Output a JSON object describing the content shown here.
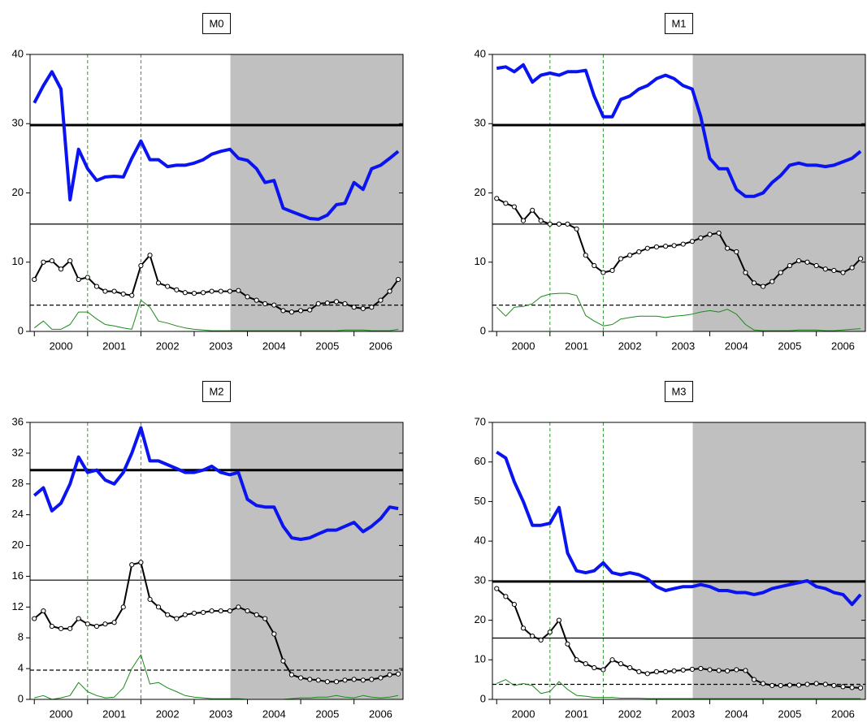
{
  "chart_data": [
    {
      "type": "line",
      "title": "M0",
      "x": [
        2000,
        2000.17,
        2000.33,
        2000.5,
        2000.67,
        2000.83,
        2001,
        2001.17,
        2001.33,
        2001.5,
        2001.67,
        2001.83,
        2002,
        2002.17,
        2002.33,
        2002.5,
        2002.67,
        2002.83,
        2003,
        2003.17,
        2003.33,
        2003.5,
        2003.67,
        2003.83,
        2004,
        2004.17,
        2004.33,
        2004.5,
        2004.67,
        2004.83,
        2005,
        2005.17,
        2005.33,
        2005.5,
        2005.67,
        2005.83,
        2006,
        2006.17,
        2006.33,
        2006.5,
        2006.67,
        2006.83
      ],
      "xlim": [
        1999.92,
        2006.92
      ],
      "ylim": [
        0,
        40
      ],
      "yticks": [
        0,
        10,
        20,
        30,
        40
      ],
      "xticks": [
        {
          "value": 2000,
          "label": "2000"
        },
        {
          "value": 2001,
          "label": "2001"
        },
        {
          "value": 2002,
          "label": "2002"
        },
        {
          "value": 2003,
          "label": "2003"
        },
        {
          "value": 2004,
          "label": "2004"
        },
        {
          "value": 2005,
          "label": "2005"
        },
        {
          "value": 2006,
          "label": "2006"
        }
      ],
      "shaded": [
        2003.68,
        2006.92
      ],
      "vlines": [
        2001.0,
        2002.0
      ],
      "reference_lines": [
        {
          "value": 29.8,
          "style": "thick"
        },
        {
          "value": 15.5,
          "style": "thin"
        },
        {
          "value": 3.8,
          "style": "dashed"
        }
      ],
      "series": [
        {
          "color": "#0a14f0",
          "width": 4,
          "markers": false,
          "values": [
            33,
            35.5,
            37.5,
            35,
            19,
            26.3,
            23.5,
            21.8,
            22.3,
            22.4,
            22.3,
            25,
            27.5,
            24.8,
            24.8,
            23.8,
            24,
            24,
            24.3,
            24.8,
            25.6,
            26,
            26.3,
            25,
            24.7,
            23.5,
            21.5,
            21.8,
            17.8,
            17.3,
            16.8,
            16.3,
            16.2,
            16.8,
            18.3,
            18.5,
            21.5,
            20.5,
            23.5,
            24,
            25,
            26
          ]
        },
        {
          "color": "#000000",
          "width": 2,
          "markers": true,
          "values": [
            7.5,
            10,
            10.2,
            9,
            10.2,
            7.5,
            7.8,
            6.5,
            5.8,
            5.8,
            5.4,
            5.2,
            9.5,
            11,
            7,
            6.5,
            6,
            5.6,
            5.5,
            5.6,
            5.8,
            5.8,
            5.8,
            5.9,
            5,
            4.5,
            4,
            3.8,
            3,
            2.8,
            3,
            3.1,
            4,
            4.1,
            4.3,
            4,
            3.5,
            3.3,
            3.5,
            4.5,
            5.8,
            7.5
          ]
        },
        {
          "color": "#1a8a1a",
          "width": 1,
          "markers": false,
          "values": [
            0.5,
            1.5,
            0.3,
            0.3,
            1,
            2.8,
            2.8,
            1.8,
            1,
            0.8,
            0.5,
            0.3,
            4.5,
            3.5,
            1.5,
            1.2,
            0.8,
            0.5,
            0.3,
            0.2,
            0.1,
            0.1,
            0.1,
            0.1,
            0.1,
            0.1,
            0.1,
            0.1,
            0.1,
            0.1,
            0.1,
            0.1,
            0.1,
            0.1,
            0.1,
            0.2,
            0.2,
            0.2,
            0.1,
            0.1,
            0.1,
            0.3
          ]
        }
      ]
    },
    {
      "type": "line",
      "title": "M1",
      "x": [
        2000,
        2000.17,
        2000.33,
        2000.5,
        2000.67,
        2000.83,
        2001,
        2001.17,
        2001.33,
        2001.5,
        2001.67,
        2001.83,
        2002,
        2002.17,
        2002.33,
        2002.5,
        2002.67,
        2002.83,
        2003,
        2003.17,
        2003.33,
        2003.5,
        2003.67,
        2003.83,
        2004,
        2004.17,
        2004.33,
        2004.5,
        2004.67,
        2004.83,
        2005,
        2005.17,
        2005.33,
        2005.5,
        2005.67,
        2005.83,
        2006,
        2006.17,
        2006.33,
        2006.5,
        2006.67,
        2006.83
      ],
      "xlim": [
        1999.92,
        2006.92
      ],
      "ylim": [
        0,
        40
      ],
      "yticks": [
        0,
        10,
        20,
        30,
        40
      ],
      "xticks": [
        {
          "value": 2000,
          "label": "2000"
        },
        {
          "value": 2001,
          "label": "2001"
        },
        {
          "value": 2002,
          "label": "2002"
        },
        {
          "value": 2003,
          "label": "2003"
        },
        {
          "value": 2004,
          "label": "2004"
        },
        {
          "value": 2005,
          "label": "2005"
        },
        {
          "value": 2006,
          "label": "2006"
        }
      ],
      "shaded": [
        2003.68,
        2006.92
      ],
      "vlines": [
        2001.0,
        2002.0
      ],
      "reference_lines": [
        {
          "value": 29.8,
          "style": "thick"
        },
        {
          "value": 15.5,
          "style": "thin"
        },
        {
          "value": 3.8,
          "style": "dashed"
        }
      ],
      "series": [
        {
          "color": "#0a14f0",
          "width": 4,
          "markers": false,
          "values": [
            38,
            38.2,
            37.5,
            38.5,
            36,
            37,
            37.3,
            37,
            37.5,
            37.5,
            37.7,
            34,
            31,
            31,
            33.5,
            34,
            35,
            35.5,
            36.5,
            37,
            36.5,
            35.5,
            35,
            31,
            25,
            23.5,
            23.5,
            20.5,
            19.5,
            19.5,
            20,
            21.5,
            22.5,
            24,
            24.3,
            24,
            24,
            23.8,
            24,
            24.5,
            25,
            26
          ]
        },
        {
          "color": "#000000",
          "width": 2,
          "markers": true,
          "values": [
            19.2,
            18.5,
            18,
            16,
            17.5,
            16,
            15.5,
            15.5,
            15.5,
            14.8,
            11,
            9.5,
            8.5,
            8.8,
            10.5,
            11,
            11.5,
            12,
            12.2,
            12.3,
            12.4,
            12.6,
            13,
            13.5,
            14,
            14.2,
            12,
            11.5,
            8.5,
            7,
            6.5,
            7.2,
            8.5,
            9.5,
            10.2,
            10,
            9.5,
            9,
            8.8,
            8.5,
            9.2,
            10.5
          ]
        },
        {
          "color": "#1a8a1a",
          "width": 1,
          "markers": false,
          "values": [
            3.5,
            2.2,
            3.5,
            3.6,
            4,
            5,
            5.4,
            5.5,
            5.5,
            5.2,
            2.3,
            1.5,
            0.8,
            1,
            1.8,
            2,
            2.2,
            2.2,
            2.2,
            2,
            2.2,
            2.3,
            2.5,
            2.8,
            3,
            2.8,
            3.2,
            2.5,
            1,
            0.2,
            0.1,
            0.1,
            0.1,
            0.1,
            0.2,
            0.2,
            0.2,
            0.1,
            0.1,
            0.2,
            0.3,
            0.4
          ]
        }
      ]
    },
    {
      "type": "line",
      "title": "M2",
      "x": [
        2000,
        2000.17,
        2000.33,
        2000.5,
        2000.67,
        2000.83,
        2001,
        2001.17,
        2001.33,
        2001.5,
        2001.67,
        2001.83,
        2002,
        2002.17,
        2002.33,
        2002.5,
        2002.67,
        2002.83,
        2003,
        2003.17,
        2003.33,
        2003.5,
        2003.67,
        2003.83,
        2004,
        2004.17,
        2004.33,
        2004.5,
        2004.67,
        2004.83,
        2005,
        2005.17,
        2005.33,
        2005.5,
        2005.67,
        2005.83,
        2006,
        2006.17,
        2006.33,
        2006.5,
        2006.67,
        2006.83
      ],
      "xlim": [
        1999.92,
        2006.92
      ],
      "ylim": [
        0,
        36
      ],
      "yticks": [
        0,
        4,
        8,
        12,
        16,
        20,
        24,
        28,
        32,
        36
      ],
      "xticks": [
        {
          "value": 2000,
          "label": "2000"
        },
        {
          "value": 2001,
          "label": "2001"
        },
        {
          "value": 2002,
          "label": "2002"
        },
        {
          "value": 2003,
          "label": "2003"
        },
        {
          "value": 2004,
          "label": "2004"
        },
        {
          "value": 2005,
          "label": "2005"
        },
        {
          "value": 2006,
          "label": "2006"
        }
      ],
      "shaded": [
        2003.68,
        2006.92
      ],
      "vlines": [
        2001.0,
        2002.0
      ],
      "reference_lines": [
        {
          "value": 29.8,
          "style": "thick"
        },
        {
          "value": 15.5,
          "style": "thin"
        },
        {
          "value": 3.8,
          "style": "dashed"
        }
      ],
      "series": [
        {
          "color": "#0a14f0",
          "width": 4,
          "markers": false,
          "values": [
            26.5,
            27.5,
            24.5,
            25.5,
            28,
            31.5,
            29.5,
            29.8,
            28.5,
            28,
            29.5,
            32,
            35.3,
            31,
            31,
            30.5,
            30,
            29.5,
            29.5,
            29.8,
            30.3,
            29.5,
            29.2,
            29.5,
            26,
            25.2,
            25,
            25,
            22.5,
            21,
            20.8,
            21,
            21.5,
            22,
            22,
            22.5,
            23,
            21.8,
            22.5,
            23.5,
            25,
            24.8
          ]
        },
        {
          "color": "#000000",
          "width": 2,
          "markers": true,
          "values": [
            10.5,
            11.5,
            9.5,
            9.2,
            9.2,
            10.5,
            9.8,
            9.5,
            9.8,
            10,
            12,
            17.5,
            17.8,
            13,
            12,
            11,
            10.5,
            11,
            11.2,
            11.3,
            11.5,
            11.5,
            11.5,
            12,
            11.5,
            11,
            10.5,
            8.5,
            5,
            3.2,
            2.8,
            2.6,
            2.5,
            2.3,
            2.3,
            2.5,
            2.6,
            2.5,
            2.6,
            2.8,
            3.2,
            3.3
          ]
        },
        {
          "color": "#1a8a1a",
          "width": 1,
          "markers": false,
          "values": [
            0.2,
            0.5,
            0,
            0.2,
            0.5,
            2.2,
            1,
            0.5,
            0.2,
            0.3,
            1.5,
            4,
            5.8,
            2,
            2.2,
            1.5,
            1,
            0.5,
            0.3,
            0.2,
            0.1,
            0.1,
            0.1,
            0.1,
            0,
            0,
            0,
            0,
            0,
            0.1,
            0.2,
            0.2,
            0.3,
            0.3,
            0.5,
            0.3,
            0.2,
            0.5,
            0.3,
            0.2,
            0.3,
            0.5
          ]
        }
      ]
    },
    {
      "type": "line",
      "title": "M3",
      "x": [
        2000,
        2000.17,
        2000.33,
        2000.5,
        2000.67,
        2000.83,
        2001,
        2001.17,
        2001.33,
        2001.5,
        2001.67,
        2001.83,
        2002,
        2002.17,
        2002.33,
        2002.5,
        2002.67,
        2002.83,
        2003,
        2003.17,
        2003.33,
        2003.5,
        2003.67,
        2003.83,
        2004,
        2004.17,
        2004.33,
        2004.5,
        2004.67,
        2004.83,
        2005,
        2005.17,
        2005.33,
        2005.5,
        2005.67,
        2005.83,
        2006,
        2006.17,
        2006.33,
        2006.5,
        2006.67,
        2006.83
      ],
      "xlim": [
        1999.92,
        2006.92
      ],
      "ylim": [
        0,
        70
      ],
      "yticks": [
        0,
        10,
        20,
        30,
        40,
        50,
        60,
        70
      ],
      "xticks": [
        {
          "value": 2000,
          "label": "2000"
        },
        {
          "value": 2001,
          "label": "2001"
        },
        {
          "value": 2002,
          "label": "2002"
        },
        {
          "value": 2003,
          "label": "2003"
        },
        {
          "value": 2004,
          "label": "2004"
        },
        {
          "value": 2005,
          "label": "2005"
        },
        {
          "value": 2006,
          "label": "2006"
        }
      ],
      "shaded": [
        2003.68,
        2006.92
      ],
      "vlines": [
        2001.0,
        2002.0
      ],
      "reference_lines": [
        {
          "value": 29.8,
          "style": "thick"
        },
        {
          "value": 15.5,
          "style": "thin"
        },
        {
          "value": 3.8,
          "style": "dashed"
        }
      ],
      "series": [
        {
          "color": "#0a14f0",
          "width": 4,
          "markers": false,
          "values": [
            62.5,
            61,
            55,
            50,
            44,
            44,
            44.5,
            48.5,
            37,
            32.5,
            32,
            32.5,
            34.5,
            32,
            31.5,
            32,
            31.5,
            30.5,
            28.5,
            27.5,
            28,
            28.5,
            28.5,
            29,
            28.5,
            27.5,
            27.5,
            27,
            27,
            26.5,
            27,
            28,
            28.5,
            29,
            29.5,
            30,
            28.5,
            28,
            27,
            26.5,
            24,
            26.5
          ]
        },
        {
          "color": "#000000",
          "width": 2,
          "markers": true,
          "values": [
            28,
            26,
            24,
            18,
            16,
            15,
            17,
            20,
            14,
            10,
            9,
            8,
            7.5,
            10,
            9,
            8,
            7,
            6.5,
            7,
            7,
            7.2,
            7.4,
            7.6,
            7.8,
            7.5,
            7.3,
            7.2,
            7.5,
            7.3,
            5,
            4,
            3.5,
            3.5,
            3.6,
            3.6,
            3.8,
            4,
            3.8,
            3.5,
            3.2,
            3,
            2.9
          ]
        },
        {
          "color": "#1a8a1a",
          "width": 1,
          "markers": false,
          "values": [
            4,
            5,
            3.5,
            4,
            3.5,
            1.5,
            2,
            4.5,
            2.5,
            1,
            0.8,
            0.5,
            0.5,
            0.5,
            0.3,
            0.3,
            0.3,
            0.2,
            0.2,
            0.2,
            0.2,
            0.2,
            0.2,
            0.2,
            0.2,
            0.2,
            0.2,
            0.2,
            0.2,
            0.2,
            0.2,
            0.2,
            0.2,
            0.2,
            0.2,
            0.2,
            0.2,
            0.2,
            0.2,
            0.2,
            0.2,
            0.2
          ]
        }
      ]
    }
  ]
}
